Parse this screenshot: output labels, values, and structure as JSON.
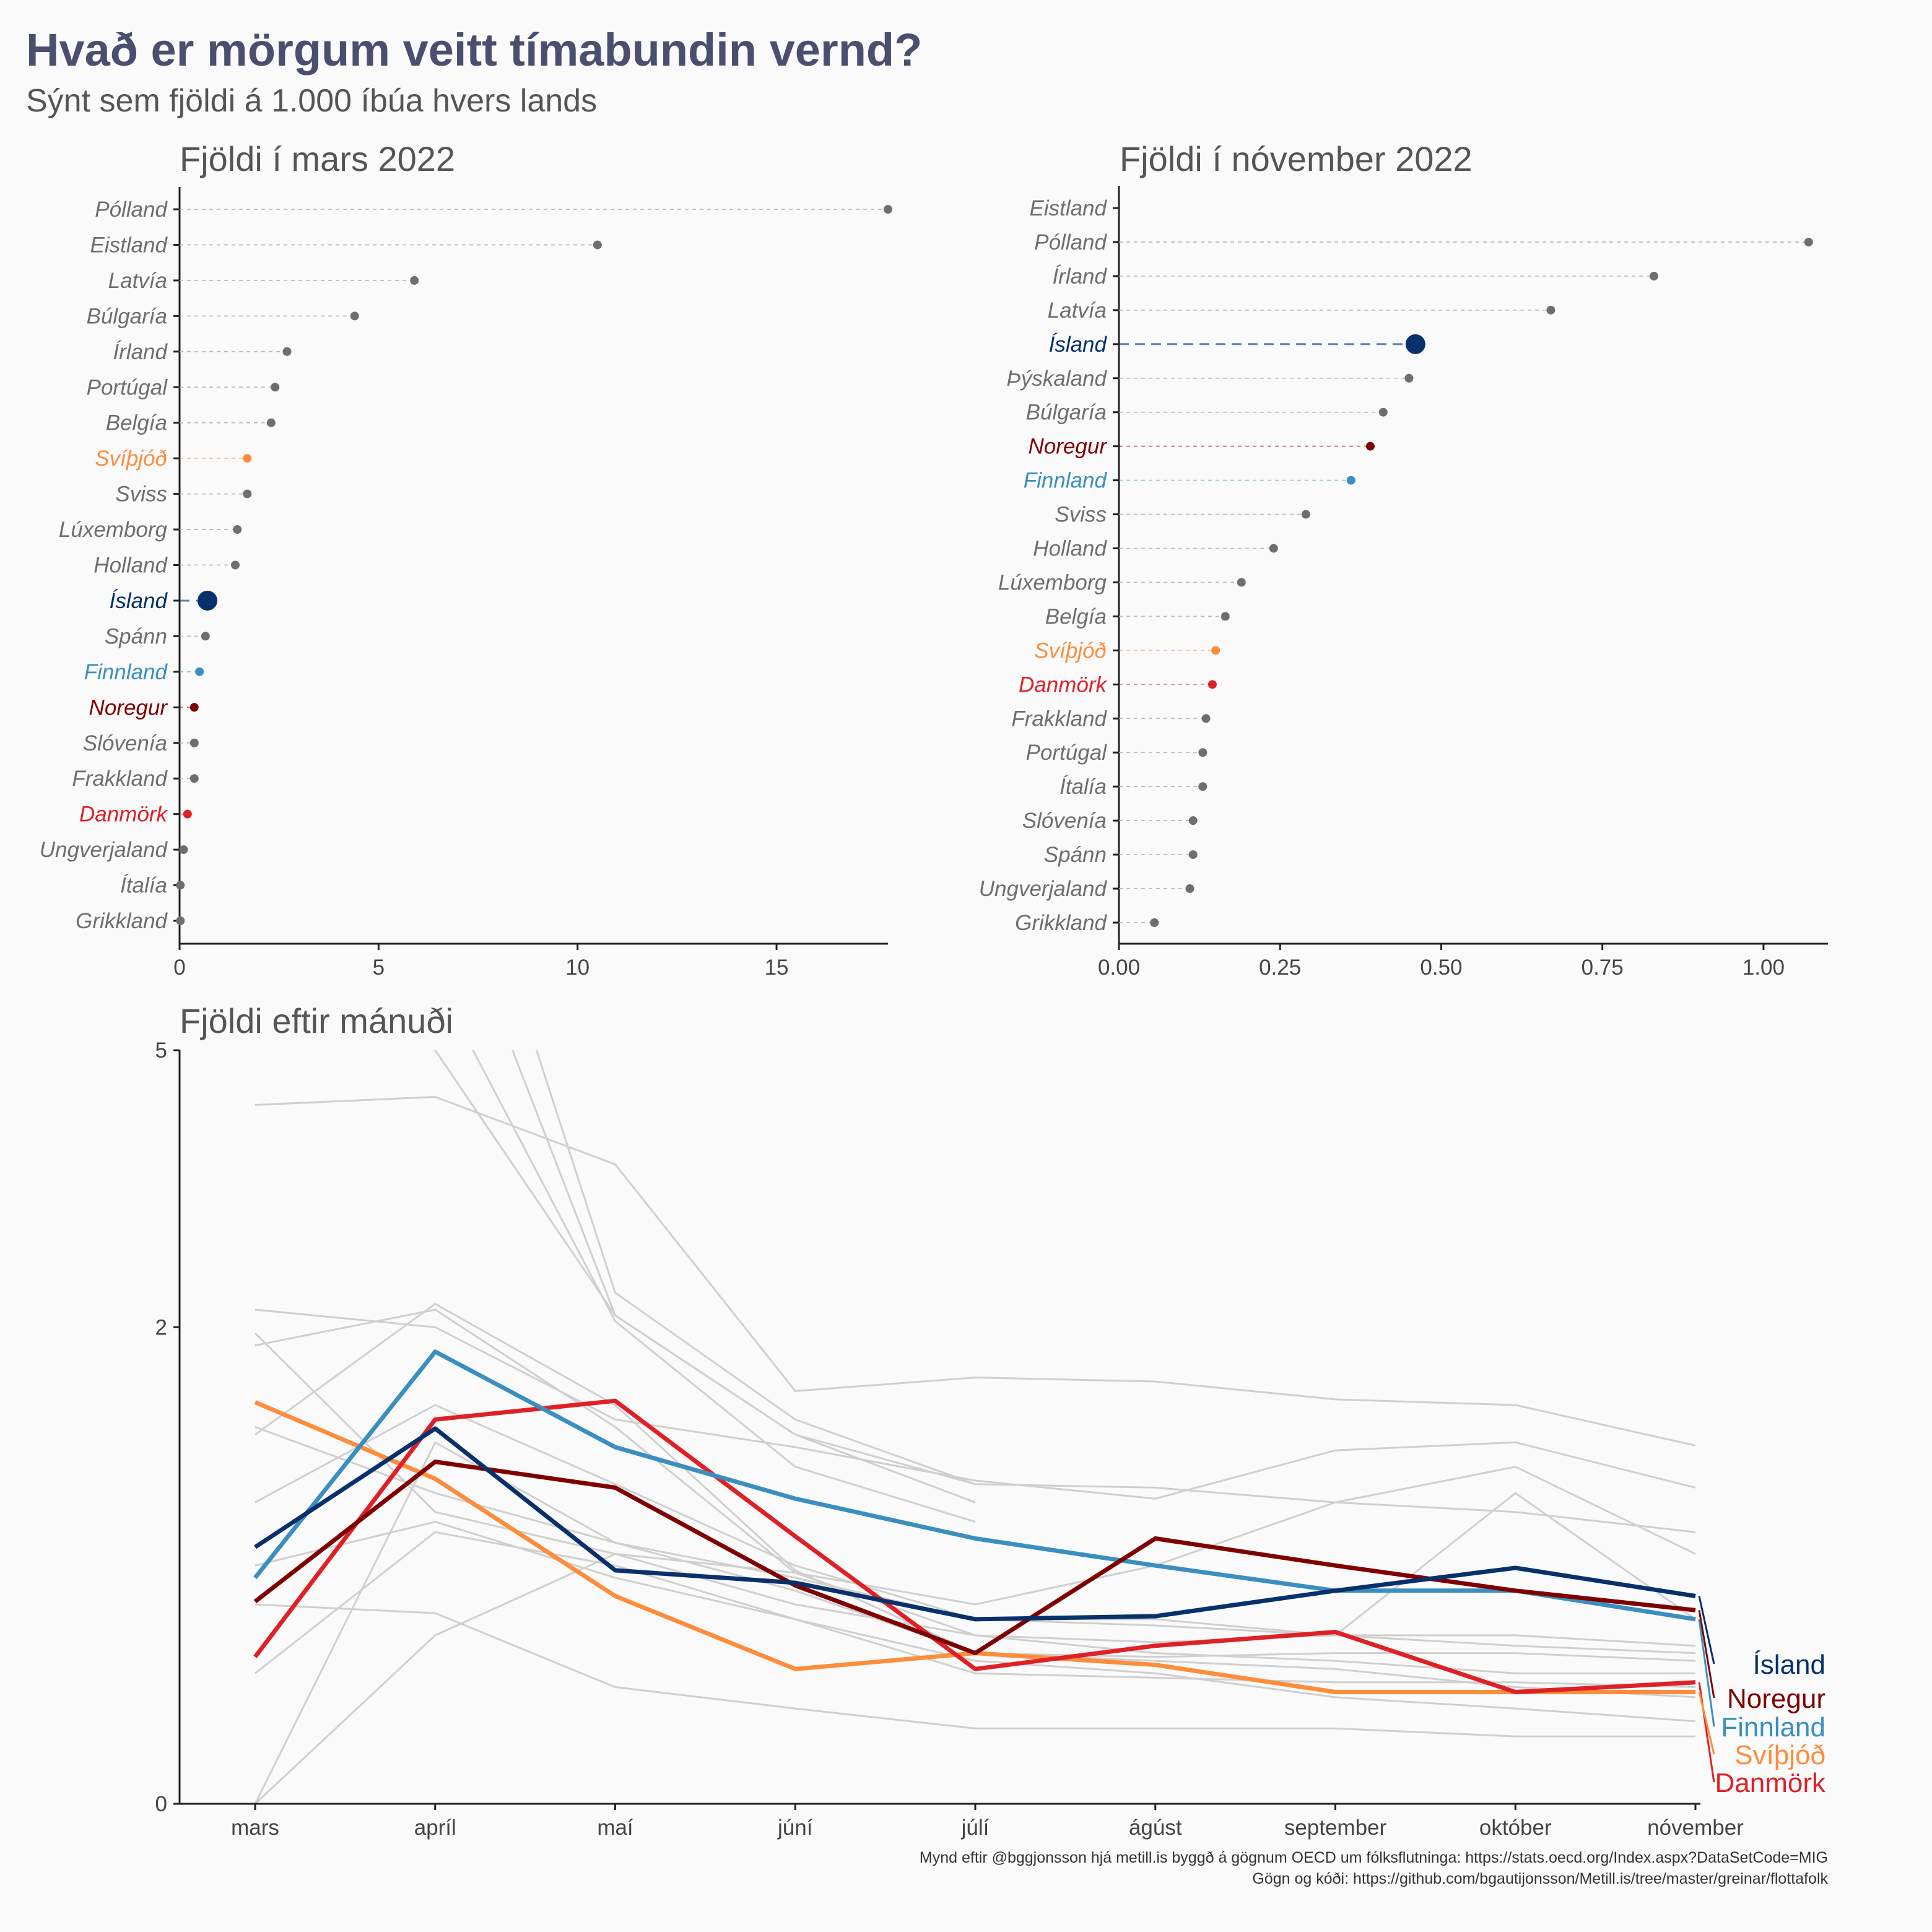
{
  "title": "Hvað er mörgum veitt tímabundin vernd?",
  "subtitle": "Sýnt sem fjöldi á 1.000 íbúa hvers lands",
  "caption": {
    "line1": "Mynd eftir @bggjonsson hjá metill.is byggð á gögnum OECD um fólksflutninga: https://stats.oecd.org/Index.aspx?DataSetCode=MIG",
    "line2": "Gögn og kóði: https://github.com/bgautijonsson/Metill.is/tree/master/greinar/flottafolk"
  },
  "colors": {
    "Ísland": "#08306b",
    "Noregur": "#7f0000",
    "Finnland": "#3a8fc0",
    "Svíþjóð": "#fd8d3c",
    "Danmörk": "#de2127",
    "other": "#6e6e6e",
    "other_line": "#cfcfcf"
  },
  "chart_data": [
    {
      "type": "scatter",
      "title": "Fjöldi í mars 2022",
      "xlim": [
        0,
        17.8
      ],
      "xticks": [
        "0",
        "5",
        "10",
        "15"
      ],
      "xtick_values": [
        0,
        5,
        10,
        15
      ],
      "categories": [
        "Pólland",
        "Eistland",
        "Latvía",
        "Búlgaría",
        "Írland",
        "Portúgal",
        "Belgía",
        "Svíþjóð",
        "Sviss",
        "Lúxemborg",
        "Holland",
        "Ísland",
        "Spánn",
        "Finnland",
        "Noregur",
        "Slóvenía",
        "Frakkland",
        "Danmörk",
        "Ungverjaland",
        "Ítalía",
        "Grikkland"
      ],
      "values": [
        17.8,
        10.5,
        5.9,
        4.4,
        2.7,
        2.4,
        2.3,
        1.7,
        1.7,
        1.45,
        1.4,
        0.7,
        0.65,
        0.5,
        0.37,
        0.37,
        0.37,
        0.2,
        0.1,
        0.02,
        0.02
      ]
    },
    {
      "type": "scatter",
      "title": "Fjöldi í nóvember 2022",
      "xlim": [
        0,
        1.1
      ],
      "xticks": [
        "0.00",
        "0.25",
        "0.50",
        "0.75",
        "1.00"
      ],
      "xtick_values": [
        0,
        0.25,
        0.5,
        0.75,
        1.0
      ],
      "categories": [
        "Eistland",
        "Pólland",
        "Írland",
        "Latvía",
        "Ísland",
        "Þýskaland",
        "Búlgaría",
        "Noregur",
        "Finnland",
        "Sviss",
        "Holland",
        "Lúxemborg",
        "Belgía",
        "Svíþjóð",
        "Danmörk",
        "Frakkland",
        "Portúgal",
        "Ítalía",
        "Slóvenía",
        "Spánn",
        "Ungverjaland",
        "Grikkland"
      ],
      "values": [
        null,
        1.07,
        0.83,
        0.67,
        0.46,
        0.45,
        0.41,
        0.39,
        0.36,
        0.29,
        0.24,
        0.19,
        0.165,
        0.15,
        0.145,
        0.135,
        0.13,
        0.13,
        0.115,
        0.115,
        0.11,
        0.055
      ]
    },
    {
      "type": "line",
      "title": "Fjöldi eftir mánuði",
      "ylim": [
        0,
        5
      ],
      "yscale": "sqrt",
      "yticks": [
        "0",
        "2",
        "5"
      ],
      "ytick_values": [
        0,
        2,
        5
      ],
      "x": [
        "mars",
        "apríl",
        "maí",
        "júní",
        "júlí",
        "ágúst",
        "september",
        "október",
        "nóvember"
      ],
      "highlight": [
        {
          "name": "Ísland",
          "values": [
            0.58,
            1.24,
            0.48,
            0.43,
            0.3,
            0.31,
            0.4,
            0.49,
            0.38
          ]
        },
        {
          "name": "Noregur",
          "values": [
            0.36,
            1.03,
            0.88,
            0.42,
            0.2,
            0.62,
            0.5,
            0.4,
            0.33
          ]
        },
        {
          "name": "Finnland",
          "values": [
            0.45,
            1.8,
            1.12,
            0.82,
            0.62,
            0.5,
            0.4,
            0.4,
            0.3
          ]
        },
        {
          "name": "Svíþjóð",
          "values": [
            1.42,
            0.93,
            0.38,
            0.16,
            0.2,
            0.17,
            0.11,
            0.11,
            0.11
          ]
        },
        {
          "name": "Danmörk",
          "values": [
            0.19,
            1.3,
            1.43,
            0.63,
            0.16,
            0.22,
            0.26,
            0.11,
            0.13
          ]
        }
      ],
      "others": [
        [
          4.3,
          4.4,
          3.6,
          1.5,
          1.6,
          1.57,
          1.44,
          1.4,
          1.13
        ],
        [
          6.5,
          5.0,
          2.1,
          1.2,
          0.9,
          0.88,
          0.8,
          0.75,
          0.65
        ],
        [
          2.15,
          2.0,
          1.3,
          1.12,
          0.92,
          0.82,
          1.1,
          1.15,
          0.88
        ],
        [
          1.95,
          0.75,
          0.55,
          0.47,
          0.35,
          0.5,
          0.8,
          1.0,
          0.55
        ],
        [
          1.85,
          2.15,
          1.25,
          0.47,
          0.25,
          0.23,
          0.25,
          0.85,
          0.3
        ],
        [
          1.2,
          2.2,
          1.4,
          0.48,
          0.2,
          0.19,
          0.2,
          0.2,
          0.18
        ],
        [
          1.25,
          0.85,
          0.6,
          0.45,
          0.3,
          0.28,
          0.25,
          0.25,
          0.22
        ],
        [
          0.35,
          0.32,
          0.12,
          0.08,
          0.05,
          0.05,
          0.05,
          0.04,
          0.04
        ],
        [
          0.15,
          0.65,
          0.5,
          0.3,
          0.15,
          0.14,
          0.13,
          0.13,
          0.12
        ],
        [
          0.0,
          0.25,
          0.55,
          0.35,
          0.25,
          0.2,
          0.18,
          0.15,
          0.15
        ],
        [
          0.0,
          1.15,
          0.6,
          0.4,
          0.2,
          0.18,
          0.16,
          0.12,
          0.1
        ],
        [
          0.5,
          0.7,
          0.45,
          0.3,
          0.18,
          0.15,
          0.1,
          0.08,
          0.06
        ],
        [
          0.8,
          1.4,
          0.9,
          0.5,
          0.3,
          0.3,
          0.25,
          0.22,
          0.2
        ]
      ],
      "steep": [
        [
          12.0,
          10.0,
          2.3,
          1.3,
          0.9
        ],
        [
          15.0,
          8.0,
          2.1,
          1.2,
          0.8
        ],
        [
          18.0,
          6.0,
          2.05,
          1.0,
          0.7
        ]
      ]
    }
  ]
}
